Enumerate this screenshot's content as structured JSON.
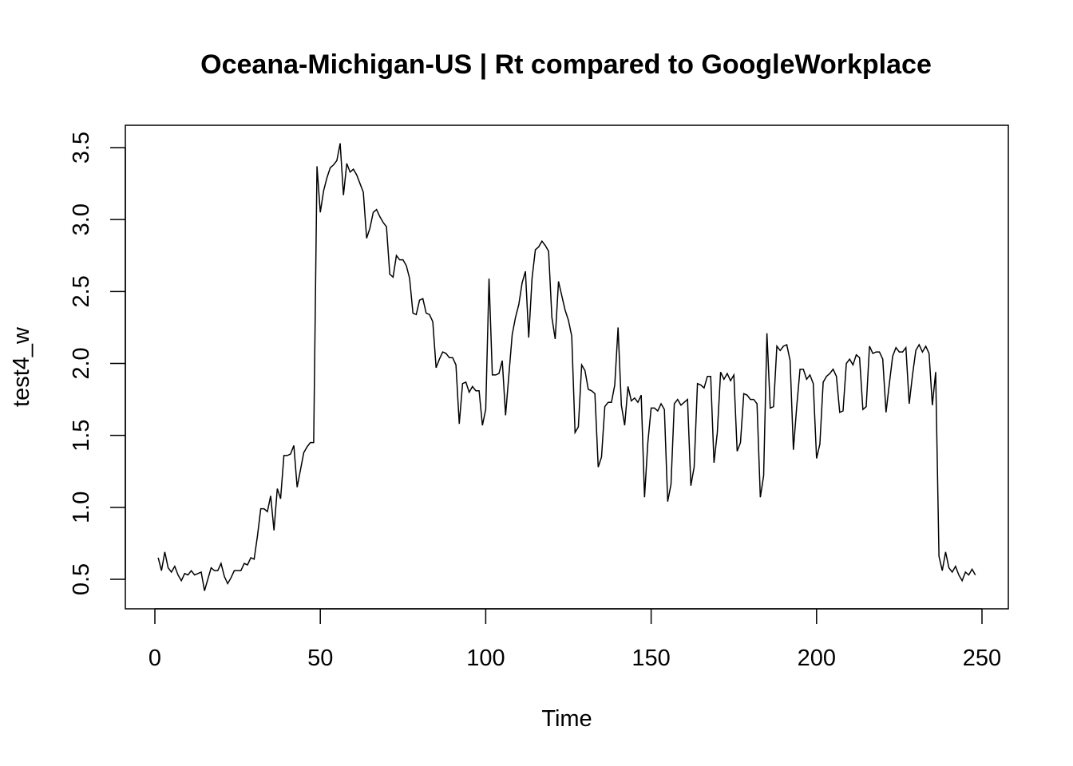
{
  "chart_data": {
    "type": "line",
    "title": "Oceana-Michigan-US | Rt compared to GoogleWorkplace",
    "xlabel": "Time",
    "ylabel": "test4_w",
    "xlim": [
      0,
      250
    ],
    "ylim": [
      0.5,
      3.5
    ],
    "x_ticks": [
      0,
      50,
      100,
      150,
      200,
      250
    ],
    "y_ticks": [
      0.5,
      1.0,
      1.5,
      2.0,
      2.5,
      3.0,
      3.5
    ],
    "x_tick_labels": [
      "0",
      "50",
      "100",
      "150",
      "200",
      "250"
    ],
    "y_tick_labels": [
      "0.5",
      "1.0",
      "1.5",
      "2.0",
      "2.5",
      "3.0",
      "3.5"
    ],
    "grid": false,
    "line_color": "#000000",
    "series": [
      {
        "x_start": 1,
        "values": [
          0.65,
          0.56,
          0.69,
          0.58,
          0.55,
          0.59,
          0.53,
          0.49,
          0.54,
          0.53,
          0.56,
          0.53,
          0.54,
          0.55,
          0.42,
          0.5,
          0.58,
          0.56,
          0.56,
          0.61,
          0.52,
          0.47,
          0.51,
          0.56,
          0.56,
          0.56,
          0.61,
          0.6,
          0.65,
          0.64,
          0.8,
          0.99,
          0.99,
          0.97,
          1.08,
          0.84,
          1.13,
          1.06,
          1.36,
          1.36,
          1.37,
          1.43,
          1.14,
          1.26,
          1.38,
          1.42,
          1.45,
          1.45,
          3.37,
          3.05,
          3.2,
          3.29,
          3.36,
          3.38,
          3.41,
          3.53,
          3.17,
          3.39,
          3.33,
          3.35,
          3.31,
          3.25,
          3.19,
          2.87,
          2.94,
          3.05,
          3.07,
          3.02,
          2.98,
          2.95,
          2.62,
          2.6,
          2.75,
          2.72,
          2.72,
          2.68,
          2.59,
          2.35,
          2.34,
          2.44,
          2.45,
          2.35,
          2.34,
          2.29,
          1.97,
          2.03,
          2.08,
          2.07,
          2.04,
          2.04,
          1.99,
          1.58,
          1.86,
          1.87,
          1.8,
          1.84,
          1.81,
          1.81,
          1.57,
          1.68,
          2.59,
          1.92,
          1.92,
          1.93,
          2.02,
          1.64,
          1.92,
          2.2,
          2.32,
          2.41,
          2.56,
          2.64,
          2.18,
          2.59,
          2.79,
          2.81,
          2.85,
          2.82,
          2.78,
          2.32,
          2.17,
          2.57,
          2.47,
          2.37,
          2.3,
          2.19,
          1.52,
          1.56,
          1.99,
          1.95,
          1.82,
          1.81,
          1.79,
          1.28,
          1.35,
          1.7,
          1.73,
          1.73,
          1.85,
          2.25,
          1.71,
          1.57,
          1.84,
          1.74,
          1.76,
          1.73,
          1.78,
          1.07,
          1.45,
          1.69,
          1.69,
          1.67,
          1.72,
          1.68,
          1.04,
          1.16,
          1.72,
          1.75,
          1.71,
          1.73,
          1.75,
          1.15,
          1.28,
          1.86,
          1.85,
          1.83,
          1.91,
          1.91,
          1.31,
          1.52,
          1.94,
          1.89,
          1.93,
          1.88,
          1.92,
          1.39,
          1.45,
          1.79,
          1.78,
          1.75,
          1.75,
          1.72,
          1.07,
          1.22,
          2.21,
          1.69,
          1.7,
          2.12,
          2.09,
          2.12,
          2.13,
          2.02,
          1.4,
          1.7,
          1.96,
          1.96,
          1.89,
          1.92,
          1.86,
          1.34,
          1.44,
          1.87,
          1.91,
          1.93,
          1.96,
          1.91,
          1.66,
          1.67,
          2.0,
          2.03,
          1.99,
          2.06,
          2.04,
          1.68,
          1.7,
          2.12,
          2.07,
          2.08,
          2.08,
          2.03,
          1.66,
          1.86,
          2.05,
          2.11,
          2.08,
          2.08,
          2.11,
          1.72,
          1.92,
          2.09,
          2.13,
          2.08,
          2.12,
          2.07,
          1.71,
          1.94,
          0.66,
          0.56,
          0.69,
          0.58,
          0.55,
          0.59,
          0.53,
          0.49,
          0.55,
          0.53,
          0.57,
          0.53
        ]
      }
    ]
  }
}
